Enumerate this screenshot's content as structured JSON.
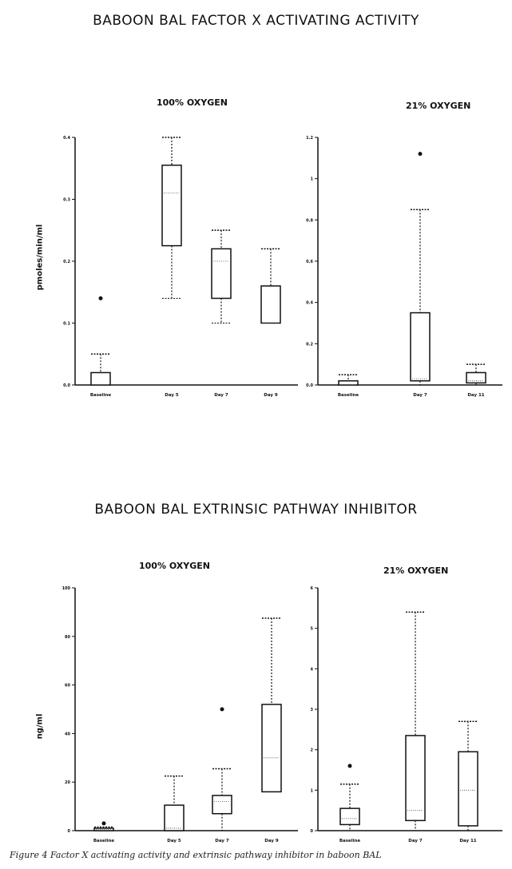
{
  "figure": {
    "section1_title": "BABOON BAL FACTOR X ACTIVATING ACTIVITY",
    "section2_title": "BABOON BAL EXTRINSIC PATHWAY INHIBITOR",
    "caption": "Figure 4 Factor X activating activity and extrinsic pathway inhibitor in baboon BAL"
  },
  "chart_data": [
    {
      "type": "box",
      "title": "100% OXYGEN",
      "ylabel": "pmoles/min/ml",
      "ylim": [
        0,
        0.4
      ],
      "yticks": [
        "0.0",
        "0.1",
        "0.2",
        "0.3",
        "0.4"
      ],
      "ytick_values": [
        0,
        0.1,
        0.2,
        0.3,
        0.4
      ],
      "categories": [
        "Baseline",
        "Day 5",
        "Day 7",
        "Day 9"
      ],
      "boxes": [
        {
          "min": 0.0,
          "q1": 0.0,
          "median": 0.0,
          "q3": 0.02,
          "max": 0.05,
          "outliers": [
            0.14
          ]
        },
        {
          "min": 0.14,
          "q1": 0.225,
          "median": 0.31,
          "q3": 0.355,
          "max": 0.4,
          "outliers": []
        },
        {
          "min": 0.1,
          "q1": 0.14,
          "median": 0.2,
          "q3": 0.22,
          "max": 0.25,
          "outliers": []
        },
        {
          "min": 0.1,
          "q1": 0.1,
          "median": 0.1,
          "q3": 0.16,
          "max": 0.22,
          "outliers": []
        }
      ]
    },
    {
      "type": "box",
      "title": "21% OXYGEN",
      "ylabel": "",
      "ylim": [
        0,
        1.2
      ],
      "yticks": [
        "0.0",
        "0.2",
        "0.4",
        "0.6",
        "0.8",
        "1",
        "1.2"
      ],
      "ytick_values": [
        0,
        0.2,
        0.4,
        0.6,
        0.8,
        1.0,
        1.2
      ],
      "categories": [
        "Baseline",
        "Day 7",
        "Day 11"
      ],
      "boxes": [
        {
          "min": 0.0,
          "q1": 0.0,
          "median": 0.0,
          "q3": 0.02,
          "max": 0.05,
          "outliers": []
        },
        {
          "min": 0.0,
          "q1": 0.02,
          "median": 0.03,
          "q3": 0.35,
          "max": 0.85,
          "outliers": [
            1.12
          ]
        },
        {
          "min": 0.0,
          "q1": 0.01,
          "median": 0.02,
          "q3": 0.06,
          "max": 0.1,
          "outliers": []
        }
      ]
    },
    {
      "type": "box",
      "title": "100% OXYGEN",
      "ylabel": "ng/ml",
      "ylim": [
        0,
        100
      ],
      "yticks": [
        "0",
        "20",
        "40",
        "60",
        "80",
        "100"
      ],
      "ytick_values": [
        0,
        20,
        40,
        60,
        80,
        100
      ],
      "categories": [
        "Baseline",
        "Day 5",
        "Day 7",
        "Day 9"
      ],
      "boxes": [
        {
          "min": 0.0,
          "q1": 0.0,
          "median": 0.5,
          "q3": 1.0,
          "max": 1.5,
          "outliers": [
            3.0
          ]
        },
        {
          "min": 0.0,
          "q1": 0.0,
          "median": 1.0,
          "q3": 10.5,
          "max": 22.5,
          "outliers": []
        },
        {
          "min": 0.0,
          "q1": 7.0,
          "median": 12.0,
          "q3": 14.5,
          "max": 25.5,
          "outliers": [
            50.0
          ]
        },
        {
          "min": 16.0,
          "q1": 16.0,
          "median": 30.0,
          "q3": 52.0,
          "max": 87.5,
          "outliers": []
        }
      ]
    },
    {
      "type": "box",
      "title": "21% OXYGEN",
      "ylabel": "",
      "ylim": [
        0,
        6
      ],
      "yticks": [
        "0",
        "1",
        "2",
        "3",
        "4",
        "5",
        "6"
      ],
      "ytick_values": [
        0,
        1,
        2,
        3,
        4,
        5,
        6
      ],
      "categories": [
        "Baseline",
        "Day 7",
        "Day 11"
      ],
      "boxes": [
        {
          "min": 0.0,
          "q1": 0.15,
          "median": 0.3,
          "q3": 0.55,
          "max": 1.15,
          "outliers": [
            1.6
          ]
        },
        {
          "min": 0.0,
          "q1": 0.25,
          "median": 0.5,
          "q3": 2.35,
          "max": 5.4,
          "outliers": []
        },
        {
          "min": 0.0,
          "q1": 0.12,
          "median": 1.0,
          "q3": 1.95,
          "max": 2.7,
          "outliers": []
        }
      ]
    }
  ]
}
